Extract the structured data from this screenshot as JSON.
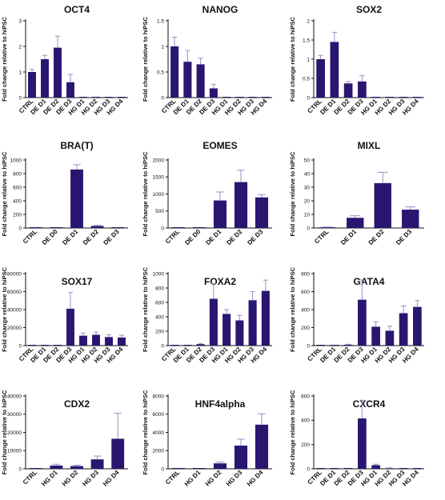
{
  "colors": {
    "bar": "#2a1670",
    "error": "#a08bc9"
  },
  "chart_data": [
    {
      "type": "bar",
      "title": "OCT4",
      "ylabel": "Fold change relative to hiPSC",
      "categories": [
        "CTRL",
        "DE D1",
        "DE D2",
        "DE D3",
        "HG D1",
        "HG D2",
        "HG D3",
        "HG D4"
      ],
      "values": [
        1.0,
        1.5,
        1.95,
        0.6,
        0,
        0,
        0,
        0
      ],
      "errors": [
        0.1,
        0.15,
        0.45,
        0.3,
        0,
        0,
        0,
        0
      ],
      "ylim": [
        0,
        3
      ],
      "yticks": [
        0,
        1,
        2,
        3
      ]
    },
    {
      "type": "bar",
      "title": "NANOG",
      "ylabel": "Fold change relative to hiPSC",
      "categories": [
        "CTRL",
        "DE D1",
        "DE D2",
        "DE D3",
        "HG D1",
        "HG D2",
        "HG D3",
        "HG D4"
      ],
      "values": [
        1.0,
        0.7,
        0.65,
        0.18,
        0,
        0,
        0,
        0
      ],
      "errors": [
        0.18,
        0.22,
        0.12,
        0.08,
        0,
        0,
        0,
        0
      ],
      "ylim": [
        0,
        1.5
      ],
      "yticks": [
        0.0,
        0.5,
        1.0,
        1.5
      ]
    },
    {
      "type": "bar",
      "title": "SOX2",
      "ylabel": "Fold change relative to hiPSC",
      "categories": [
        "CTRL",
        "DE D1",
        "DE D2",
        "DE D3",
        "HG D1",
        "HG D2",
        "HG D3",
        "HG D4"
      ],
      "values": [
        1.0,
        1.45,
        0.37,
        0.42,
        0,
        0,
        0,
        0
      ],
      "errors": [
        0.1,
        0.25,
        0.05,
        0.15,
        0,
        0,
        0,
        0
      ],
      "ylim": [
        0,
        2.0
      ],
      "yticks": [
        0.0,
        0.5,
        1.0,
        1.5,
        2.0
      ]
    },
    {
      "type": "bar",
      "title": "BRA(T)",
      "ylabel": "Fold change relative to hiPSC",
      "categories": [
        "CTRL",
        "DE D0",
        "DE D1",
        "DE D2",
        "DE D3"
      ],
      "values": [
        0,
        0,
        860,
        30,
        0
      ],
      "errors": [
        0,
        0,
        70,
        10,
        0
      ],
      "ylim": [
        0,
        1000
      ],
      "yticks": [
        0,
        200,
        400,
        600,
        800,
        1000
      ]
    },
    {
      "type": "bar",
      "title": "EOMES",
      "ylabel": "Fold change relative to hiPSC",
      "categories": [
        "CTRL",
        "DE D0",
        "DE D1",
        "DE D2",
        "DE D3"
      ],
      "values": [
        0,
        0,
        810,
        1350,
        900
      ],
      "errors": [
        0,
        0,
        250,
        350,
        80
      ],
      "ylim": [
        0,
        2000
      ],
      "yticks": [
        0,
        500,
        1000,
        1500,
        2000
      ]
    },
    {
      "type": "bar",
      "title": "MIXL",
      "ylabel": "Fold change relative to hiPSC",
      "categories": [
        "CTRL",
        "DE D1",
        "DE D2",
        "DE D3"
      ],
      "values": [
        0.5,
        7.5,
        33,
        13.5
      ],
      "errors": [
        0.3,
        1.5,
        8,
        2
      ],
      "ylim": [
        0,
        50
      ],
      "yticks": [
        0,
        10,
        20,
        30,
        40,
        50
      ]
    },
    {
      "type": "bar",
      "title": "SOX17",
      "ylabel": "Fold change relative to hiPSC",
      "categories": [
        "CTRL",
        "DE D1",
        "DE D2",
        "DE D3",
        "HG D1",
        "HG D2",
        "HG D3",
        "HG D4"
      ],
      "values": [
        0,
        0,
        0,
        41000,
        11000,
        12000,
        9500,
        9000
      ],
      "errors": [
        0,
        0,
        0,
        18000,
        3000,
        3000,
        2500,
        2500
      ],
      "ylim": [
        0,
        80000
      ],
      "yticks": [
        0,
        20000,
        40000,
        60000,
        80000
      ]
    },
    {
      "type": "bar",
      "title": "FOXA2",
      "ylabel": "Fold change relative to hiPSC",
      "categories": [
        "CTRL",
        "DE D1",
        "DE D2",
        "DE D3",
        "HG D1",
        "HG D2",
        "HG D3",
        "HG D4"
      ],
      "values": [
        0,
        0,
        20,
        650,
        440,
        350,
        630,
        760
      ],
      "errors": [
        0,
        0,
        10,
        210,
        60,
        70,
        120,
        150
      ],
      "ylim": [
        0,
        1000
      ],
      "yticks": [
        0,
        200,
        400,
        600,
        800,
        1000
      ]
    },
    {
      "type": "bar",
      "title": "GATA4",
      "ylabel": "Fold change relative to hiPSC",
      "categories": [
        "CTRL",
        "DE D1",
        "DE D2",
        "DE D3",
        "HG D1",
        "HG D2",
        "HG D3",
        "HG D4"
      ],
      "values": [
        0,
        0,
        10,
        510,
        210,
        165,
        360,
        430
      ],
      "errors": [
        0,
        0,
        5,
        220,
        55,
        50,
        80,
        70
      ],
      "ylim": [
        0,
        800
      ],
      "yticks": [
        0,
        200,
        400,
        600,
        800
      ]
    },
    {
      "type": "bar",
      "title": "CDX2",
      "ylabel": "Fold change relative to hiPSC",
      "categories": [
        "CTRL",
        "HG D1",
        "HG D2",
        "HG D3",
        "HG D4"
      ],
      "values": [
        0,
        1800,
        1500,
        5200,
        16500
      ],
      "errors": [
        0,
        700,
        500,
        1800,
        14000
      ],
      "ylim": [
        0,
        40000
      ],
      "yticks": [
        0,
        10000,
        20000,
        30000,
        40000
      ]
    },
    {
      "type": "bar",
      "title": "HNF4alpha",
      "ylabel": "Fold change relative to hiPSC",
      "categories": [
        "CTRL",
        "HG D1",
        "HG D2",
        "HG D3",
        "HG D4"
      ],
      "values": [
        0,
        0,
        600,
        2550,
        4850
      ],
      "errors": [
        0,
        0,
        150,
        700,
        1200
      ],
      "ylim": [
        0,
        8000
      ],
      "yticks": [
        0,
        2000,
        4000,
        6000,
        8000
      ]
    },
    {
      "type": "bar",
      "title": "CXCR4",
      "ylabel": "Fold change relative to hiPSC",
      "categories": [
        "CTRL",
        "DE D1",
        "DE D2",
        "DE D3",
        "HG D1",
        "HG D2",
        "HG D3",
        "HG D4"
      ],
      "values": [
        0,
        0,
        0,
        415,
        30,
        5,
        0,
        0
      ],
      "errors": [
        0,
        0,
        0,
        150,
        8,
        3,
        0,
        0
      ],
      "ylim": [
        0,
        600
      ],
      "yticks": [
        0,
        200,
        400,
        600
      ]
    }
  ]
}
